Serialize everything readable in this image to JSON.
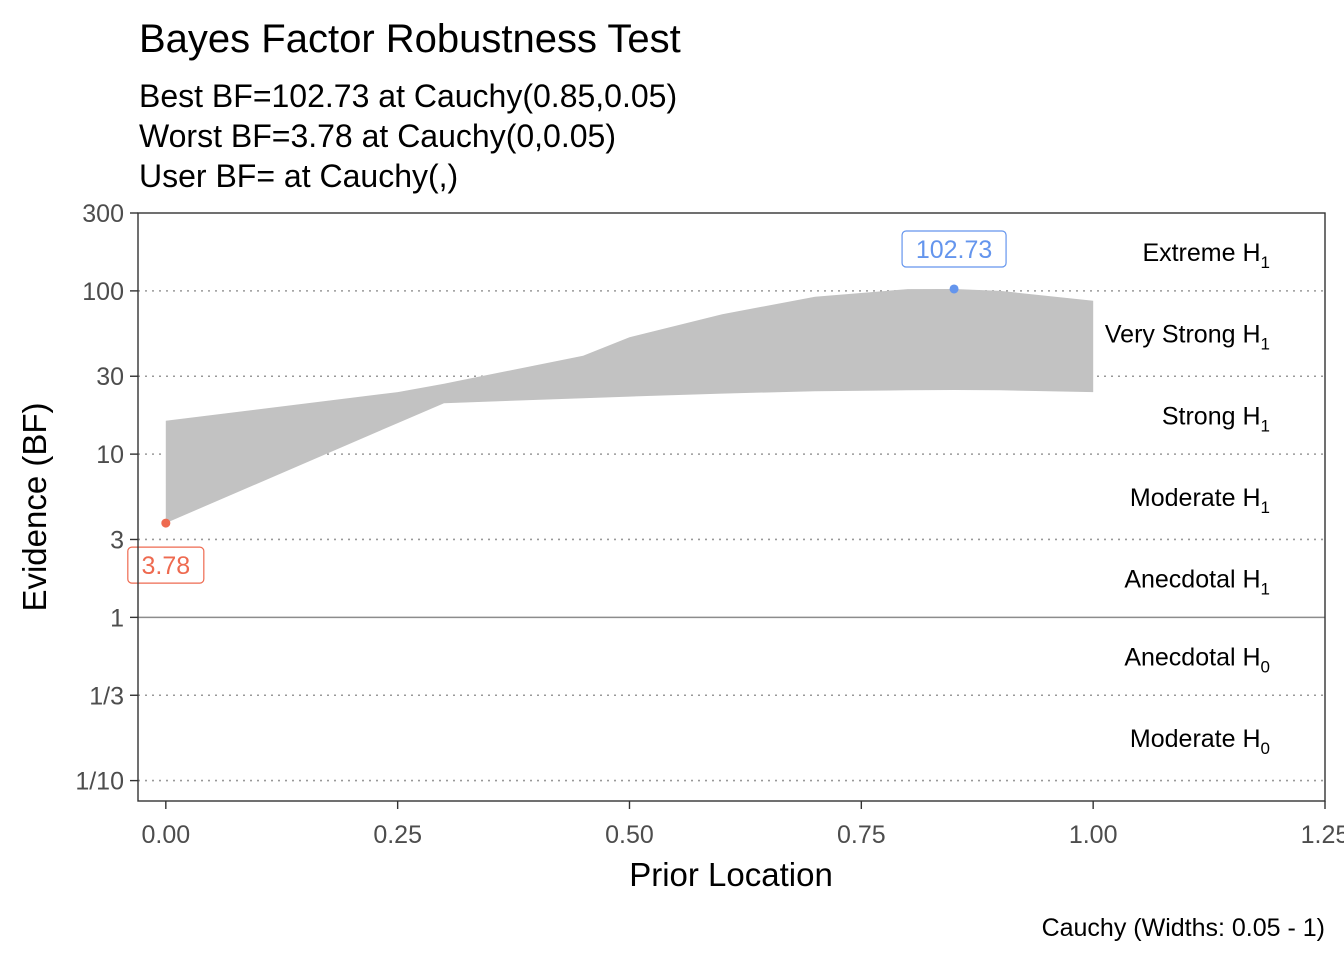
{
  "chart_data": {
    "type": "area",
    "title": "Bayes Factor Robustness Test",
    "subtitle": [
      "Best BF=102.73 at Cauchy(0.85,0.05)",
      "Worst BF=3.78 at Cauchy(0,0.05)",
      "User BF= at Cauchy(,)"
    ],
    "xlabel": "Prior Location",
    "ylabel": "Evidence (BF)",
    "caption": "Cauchy (Widths: 0.05 - 1)",
    "y_scale": "log",
    "xlim": [
      -0.03,
      1.25
    ],
    "ylim": [
      0.075,
      300
    ],
    "x_ticks": [
      {
        "value": 0,
        "label": "0.00"
      },
      {
        "value": 0.25,
        "label": "0.25"
      },
      {
        "value": 0.5,
        "label": "0.50"
      },
      {
        "value": 0.75,
        "label": "0.75"
      },
      {
        "value": 1,
        "label": "1.00"
      },
      {
        "value": 1.25,
        "label": "1.25"
      }
    ],
    "y_ticks": [
      {
        "value": 300,
        "label": "300"
      },
      {
        "value": 100,
        "label": "100"
      },
      {
        "value": 30,
        "label": "30"
      },
      {
        "value": 10,
        "label": "10"
      },
      {
        "value": 3,
        "label": "3"
      },
      {
        "value": 1,
        "label": "1"
      },
      {
        "value": 0.3333,
        "label": "1/3"
      },
      {
        "value": 0.1,
        "label": "1/10"
      }
    ],
    "gridlines_dotted": [
      100,
      30,
      10,
      3,
      0.3333,
      0.1
    ],
    "reference_line": 1,
    "band": {
      "color": "#c2c2c2",
      "x": [
        0,
        0.25,
        0.3,
        0.45,
        0.5,
        0.6,
        0.7,
        0.8,
        0.85,
        0.9,
        1.0
      ],
      "upper": [
        16,
        24,
        27,
        40,
        52,
        72,
        92,
        102.5,
        102.73,
        100,
        87
      ],
      "lower": [
        3.78,
        15.5,
        20.5,
        22,
        22.5,
        23.5,
        24.3,
        24.6,
        24.7,
        24.6,
        24
      ]
    },
    "region_labels": [
      {
        "name": "Extreme",
        "sub": "1",
        "at": 173
      },
      {
        "name": "Very Strong",
        "sub": "1",
        "at": 54.8
      },
      {
        "name": "Strong",
        "sub": "1",
        "at": 17.3
      },
      {
        "name": "Moderate",
        "sub": "1",
        "at": 5.48
      },
      {
        "name": "Anecdotal",
        "sub": "1",
        "at": 1.73
      },
      {
        "name": "Anecdotal",
        "sub": "0",
        "at": 0.577
      },
      {
        "name": "Moderate",
        "sub": "0",
        "at": 0.183
      }
    ],
    "region_prefix": "H",
    "points": [
      {
        "name": "best",
        "x": 0.85,
        "y": 102.73,
        "label": "102.73",
        "color": "#6495ed"
      },
      {
        "name": "worst",
        "x": 0,
        "y": 3.78,
        "label": "3.78",
        "color": "#ee6a50"
      }
    ]
  }
}
